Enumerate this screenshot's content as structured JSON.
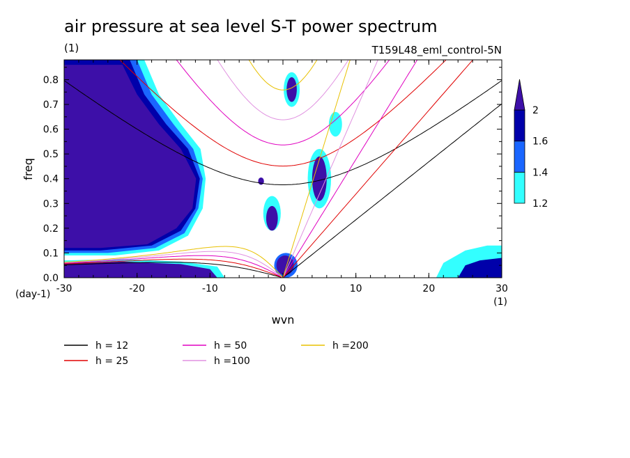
{
  "chart_data": {
    "type": "heatmap",
    "title": "air pressure at sea level S-T power spectrum",
    "units_label": "(1)",
    "experiment": "T159L48_eml_control-5N",
    "xlabel": "wvn",
    "ylabel": "freq",
    "x_unit": "(1)",
    "y_unit": "(day-1)",
    "xlim": [
      -30,
      30
    ],
    "ylim": [
      0,
      0.88
    ],
    "xticks": [
      "-30",
      "-20",
      "-10",
      "0",
      "10",
      "20",
      "30"
    ],
    "yticks": [
      "0.0",
      "0.1",
      "0.2",
      "0.3",
      "0.4",
      "0.5",
      "0.6",
      "0.7",
      "0.8"
    ],
    "colorbar": {
      "levels": [
        "1.2",
        "1.4",
        "1.6",
        "2"
      ],
      "colors": [
        "#33ffff",
        "#1a66ff",
        "#0000aa",
        "#3d0fa8"
      ],
      "extend": "max"
    },
    "shaded_regions": [
      {
        "name": "westward low-wavenumber region",
        "x": [
          -30,
          -10
        ],
        "y": [
          0.1,
          0.88
        ],
        "level": ">2"
      },
      {
        "name": "near-zero frequency band",
        "x": [
          -30,
          -10
        ],
        "y": [
          0.0,
          0.07
        ],
        "level": ">2"
      },
      {
        "name": "Kelvin region",
        "x": [
          0,
          8
        ],
        "y": [
          0.0,
          0.55
        ],
        "level": "1.4-2"
      },
      {
        "name": "high-wavenumber eastward",
        "x": [
          21,
          30
        ],
        "y": [
          0.0,
          0.12
        ],
        "level": "1.2-2"
      }
    ],
    "dispersion_curves": [
      {
        "label": "h = 12",
        "h": 12,
        "color": "#000000"
      },
      {
        "label": "h = 25",
        "h": 25,
        "color": "#e00000"
      },
      {
        "label": "h = 50",
        "h": 50,
        "color": "#e000c0"
      },
      {
        "label": "h =100",
        "h": 100,
        "color": "#e090e0"
      },
      {
        "label": "h =200",
        "h": 200,
        "color": "#e8c000"
      }
    ]
  }
}
